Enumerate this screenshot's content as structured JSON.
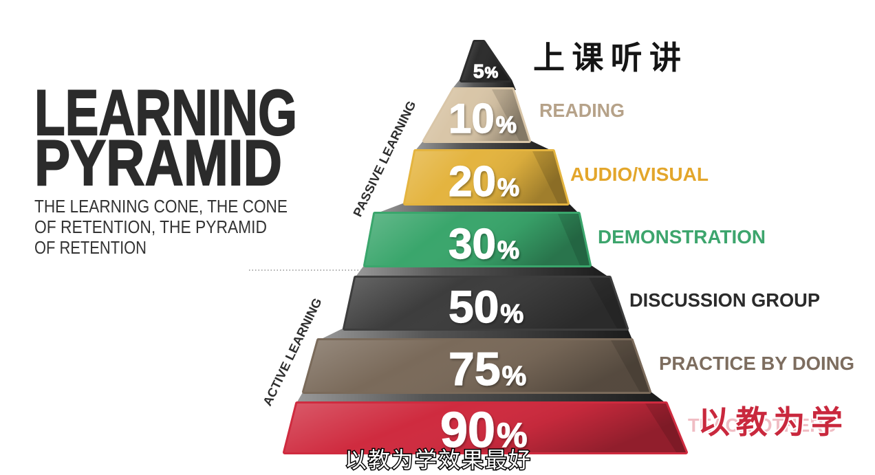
{
  "title": {
    "line1": "LEARNING",
    "line2": "PYRAMID"
  },
  "subtitle": {
    "line1": "THE LEARNING CONE, THE CONE",
    "line2": "OF RETENTION, THE PYRAMID",
    "line3": "OF RETENTION"
  },
  "groups": {
    "passive": "PASSIVE LEARNING",
    "active": "ACTIVE LEARNING"
  },
  "layers": [
    {
      "value": 5,
      "unit": "%",
      "color": "#2d2d2d"
    },
    {
      "value": 10,
      "unit": "%",
      "label": "READING",
      "color": "#d9c6a8",
      "label_color": "#b6a289"
    },
    {
      "value": 20,
      "unit": "%",
      "label": "AUDIO/VISUAL",
      "color": "#e4b43f",
      "label_color": "#e3a62b"
    },
    {
      "value": 30,
      "unit": "%",
      "label": "DEMONSTRATION",
      "color": "#3aa66c",
      "label_color": "#3da56d"
    },
    {
      "value": 50,
      "unit": "%",
      "label": "DISCUSSION GROUP",
      "color": "#3d3d3d",
      "label_color": "#2b2b2b"
    },
    {
      "value": 75,
      "unit": "%",
      "label": "PRACTICE BY DOING",
      "color": "#7a6a5a",
      "label_color": "#7d6d5f"
    },
    {
      "value": 90,
      "unit": "%",
      "label": "TEACH OTHERS",
      "color": "#cf2b3f",
      "label_color": "#eba7b1"
    }
  ],
  "overlay": {
    "top_cn": "上课听讲",
    "top_cn_color": "#151515",
    "bottom_cn": "以教为学",
    "bottom_cn_color": "#c9283d",
    "caption": "以教为学效果最好"
  }
}
